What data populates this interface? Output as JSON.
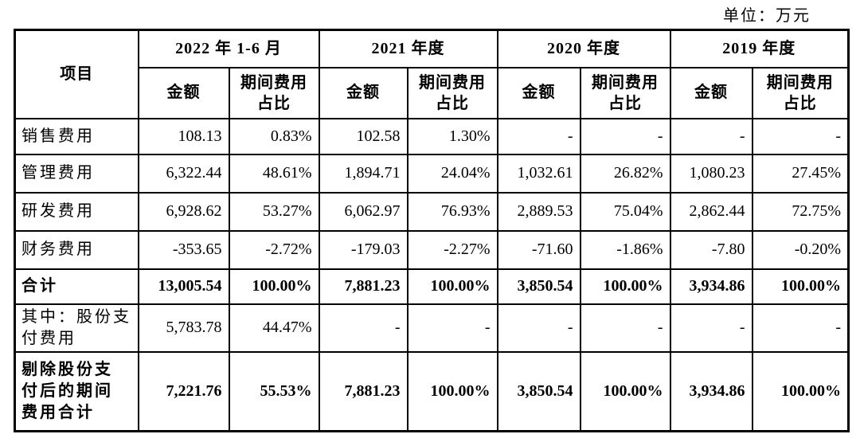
{
  "unit_label": "单位：万元",
  "table": {
    "item_header": "项目",
    "period_headers": [
      "2022 年 1-6 月",
      "2021 年度",
      "2020 年度",
      "2019 年度"
    ],
    "amount_header": "金额",
    "ratio_header": "期间费用\n占比",
    "rows": [
      {
        "label": "销售费用",
        "bold": false,
        "values": [
          "108.13",
          "0.83%",
          "102.58",
          "1.30%",
          "-",
          "-",
          "-",
          "-"
        ]
      },
      {
        "label": "管理费用",
        "bold": false,
        "values": [
          "6,322.44",
          "48.61%",
          "1,894.71",
          "24.04%",
          "1,032.61",
          "26.82%",
          "1,080.23",
          "27.45%"
        ]
      },
      {
        "label": "研发费用",
        "bold": false,
        "values": [
          "6,928.62",
          "53.27%",
          "6,062.97",
          "76.93%",
          "2,889.53",
          "75.04%",
          "2,862.44",
          "72.75%"
        ]
      },
      {
        "label": "财务费用",
        "bold": false,
        "values": [
          "-353.65",
          "-2.72%",
          "-179.03",
          "-2.27%",
          "-71.60",
          "-1.86%",
          "-7.80",
          "-0.20%"
        ]
      },
      {
        "label": "合计",
        "bold": true,
        "values": [
          "13,005.54",
          "100.00%",
          "7,881.23",
          "100.00%",
          "3,850.54",
          "100.00%",
          "3,934.86",
          "100.00%"
        ]
      },
      {
        "label": "其中：股份支\n付费用",
        "bold": false,
        "values": [
          "5,783.78",
          "44.47%",
          "-",
          "-",
          "-",
          "-",
          "-",
          "-"
        ]
      },
      {
        "label": "剔除股份支\n付后的期间\n费用合计",
        "bold": true,
        "values": [
          "7,221.76",
          "55.53%",
          "7,881.23",
          "100.00%",
          "3,850.54",
          "100.00%",
          "3,934.86",
          "100.00%"
        ]
      }
    ]
  }
}
